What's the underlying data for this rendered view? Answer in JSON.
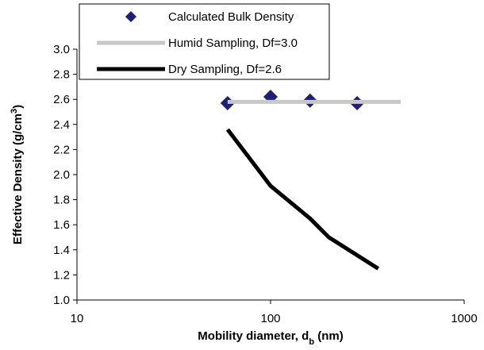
{
  "chart_data": {
    "type": "scatter",
    "x_label": [
      "Mobility diameter, d",
      "b",
      " (nm)"
    ],
    "y_label": [
      "Effective Density (g/cm",
      "3",
      ")"
    ],
    "xlim": [
      10,
      1000
    ],
    "xticks": [
      10,
      100,
      1000
    ],
    "xscale": "log",
    "ylim": [
      1.0,
      3.0
    ],
    "yticks": [
      {
        "value": 1.0,
        "label": "1.0"
      },
      1.2,
      1.4,
      1.6,
      1.8,
      {
        "value": 2.0,
        "label": "2.0"
      },
      2.2,
      2.4,
      2.6,
      2.8,
      {
        "value": 3.0,
        "label": "3.0"
      }
    ],
    "grid": false,
    "legend": "top-left",
    "series": [
      {
        "name": "Calculated Bulk Density",
        "style": "marker",
        "color": "#1f1f7a",
        "x": [
          60,
          100,
          160,
          280
        ],
        "values": [
          2.57,
          2.62,
          2.59,
          2.57
        ]
      },
      {
        "name": "Humid Sampling, Df=3.0",
        "style": "line",
        "color": "#c8c8c8",
        "x": [
          60,
          470
        ],
        "values": [
          2.58,
          2.58
        ]
      },
      {
        "name": "Dry Sampling, Df=2.6",
        "style": "line",
        "color": "#000000",
        "x": [
          60,
          100,
          160,
          200,
          360
        ],
        "values": [
          2.36,
          1.91,
          1.65,
          1.5,
          1.25
        ]
      }
    ]
  }
}
